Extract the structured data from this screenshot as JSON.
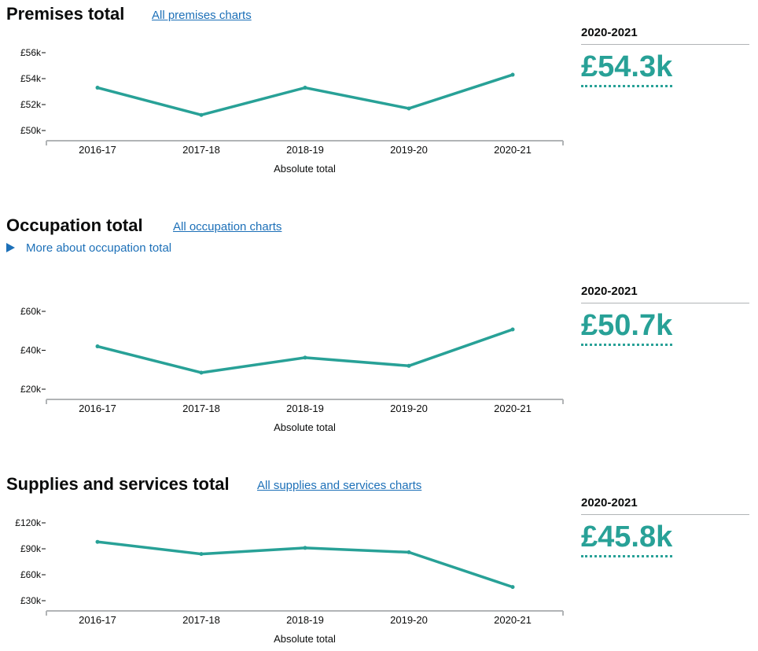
{
  "colors": {
    "accent": "#28a197",
    "link": "#1d70b8",
    "axis": "#b1b4b6"
  },
  "sections": [
    {
      "title": "Premises total",
      "link_label": "All premises charts",
      "year_label": "2020-2021",
      "value": "£54.3k"
    },
    {
      "title": "Occupation total",
      "link_label": "All occupation charts",
      "details_label": "More about occupation total",
      "year_label": "2020-2021",
      "value": "£50.7k"
    },
    {
      "title": "Supplies and services total",
      "link_label": "All supplies and services charts",
      "year_label": "2020-2021",
      "value": "£45.8k"
    }
  ],
  "chart_data": [
    {
      "type": "line",
      "categories": [
        "2016-17",
        "2017-18",
        "2018-19",
        "2019-20",
        "2020-21"
      ],
      "values": [
        53300,
        51200,
        53300,
        51700,
        54300
      ],
      "xlabel": "Absolute total",
      "ylabel": "",
      "ylim": [
        50000,
        56000
      ],
      "yticks": [
        {
          "value": 56000,
          "label": "£56k"
        },
        {
          "value": 54000,
          "label": "£54k"
        },
        {
          "value": 52000,
          "label": "£52k"
        },
        {
          "value": 50000,
          "label": "£50k"
        }
      ],
      "grid": false
    },
    {
      "type": "line",
      "categories": [
        "2016-17",
        "2017-18",
        "2018-19",
        "2019-20",
        "2020-21"
      ],
      "values": [
        42000,
        28500,
        36200,
        32000,
        50700
      ],
      "xlabel": "Absolute total",
      "ylabel": "",
      "ylim": [
        20000,
        60000
      ],
      "yticks": [
        {
          "value": 60000,
          "label": "£60k"
        },
        {
          "value": 40000,
          "label": "£40k"
        },
        {
          "value": 20000,
          "label": "£20k"
        }
      ],
      "grid": false
    },
    {
      "type": "line",
      "categories": [
        "2016-17",
        "2017-18",
        "2018-19",
        "2019-20",
        "2020-21"
      ],
      "values": [
        98000,
        84000,
        91000,
        86000,
        45800
      ],
      "xlabel": "Absolute total",
      "ylabel": "",
      "ylim": [
        30000,
        120000
      ],
      "yticks": [
        {
          "value": 120000,
          "label": "£120k"
        },
        {
          "value": 90000,
          "label": "£90k"
        },
        {
          "value": 60000,
          "label": "£60k"
        },
        {
          "value": 30000,
          "label": "£30k"
        }
      ],
      "grid": false
    }
  ]
}
